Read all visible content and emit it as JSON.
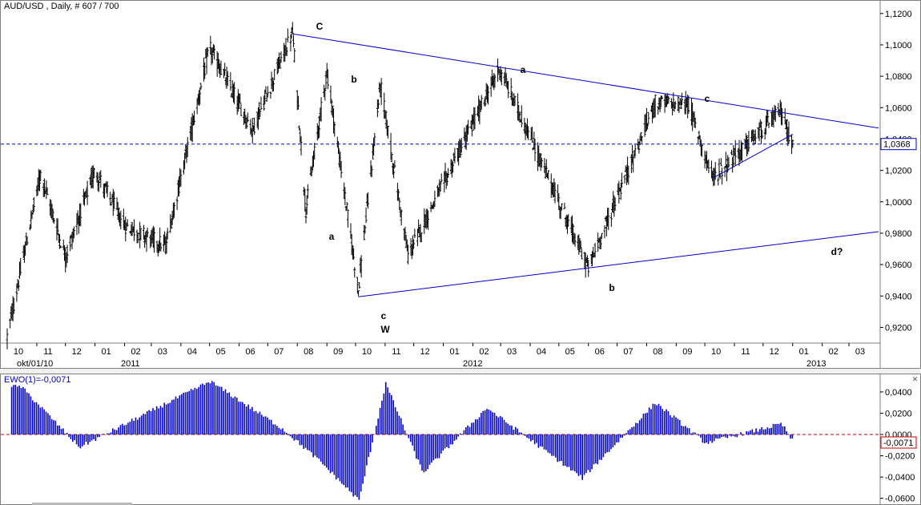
{
  "main": {
    "title": "AUD/USD , Daily, # 607 / 700",
    "last_price_label": "1,0368",
    "y_tick_labels": [
      "1,1200",
      "1,1000",
      "1,0800",
      "1,0600",
      "1,0400",
      "1,0200",
      "1,0000",
      "0,9800",
      "0,9600",
      "0,9400",
      "0,9200"
    ],
    "month_labels": [
      "10",
      "11",
      "12",
      "01",
      "02",
      "03",
      "04",
      "05",
      "06",
      "07",
      "08",
      "09",
      "10",
      "11",
      "12",
      "01",
      "02",
      "03",
      "04",
      "05",
      "06",
      "07",
      "08",
      "09",
      "10",
      "11",
      "12",
      "01",
      "02",
      "03"
    ],
    "year_labels": [
      "okt/01/10",
      "2011",
      "2012",
      "2013"
    ],
    "wave_labels": [
      "C",
      "b",
      "a",
      "c",
      "W",
      "a",
      "b",
      "c",
      "d?"
    ]
  },
  "oscillator": {
    "title": "EWO(1)=-0,0071",
    "last_value_label": "-0,0071",
    "y_tick_labels": [
      "0,0400",
      "0,0200",
      "0,0000",
      "-0,0200",
      "-0,0400",
      "-0,0600"
    ]
  },
  "colors": {
    "bars": "#000000",
    "trendlines": "#0000cc",
    "dashed_level": "#0000cc",
    "osc_bars": "#0000cc",
    "osc_zero": "#cc0000"
  },
  "chart_data": [
    {
      "type": "bar",
      "series_kind": "ohlc",
      "title": "AUD/USD , Daily, # 607 / 700",
      "ylim": [
        0.91,
        1.125
      ],
      "last_value": 1.0368,
      "x_range": [
        "2010-10-01",
        "2013-03"
      ],
      "key_points": [
        {
          "date": "2010-10-01",
          "price": 0.914
        },
        {
          "date": "2010-11-05",
          "price": 1.018
        },
        {
          "date": "2010-12-01",
          "price": 0.965
        },
        {
          "date": "2011-01-01",
          "price": 1.02
        },
        {
          "date": "2011-02-01",
          "price": 0.985
        },
        {
          "date": "2011-03-16",
          "price": 0.972
        },
        {
          "date": "2011-05-01",
          "price": 1.098
        },
        {
          "date": "2011-06-15",
          "price": 1.046
        },
        {
          "date": "2011-07-27",
          "price": 1.108,
          "label": "C"
        },
        {
          "date": "2011-08-10",
          "price": 0.995,
          "label": "a"
        },
        {
          "date": "2011-09-01",
          "price": 1.083,
          "label": "b"
        },
        {
          "date": "2011-10-04",
          "price": 0.944,
          "label": "c"
        },
        {
          "date": "2011-10-27",
          "price": 1.075
        },
        {
          "date": "2011-11-25",
          "price": 0.966
        },
        {
          "date": "2012-02-29",
          "price": 1.085,
          "label": "a"
        },
        {
          "date": "2012-06-01",
          "price": 0.958,
          "label": "b"
        },
        {
          "date": "2012-08-10",
          "price": 1.063
        },
        {
          "date": "2012-09-14",
          "price": 1.062,
          "label": "c"
        },
        {
          "date": "2012-10-09",
          "price": 1.015
        },
        {
          "date": "2012-12-20",
          "price": 1.058
        },
        {
          "date": "2013-01-01",
          "price": 1.0368
        }
      ],
      "trendlines": [
        {
          "from": {
            "date": "2011-07-27",
            "price": 1.107
          },
          "to": {
            "date": "2013-04-01",
            "price": 1.047
          }
        },
        {
          "from": {
            "date": "2011-10-04",
            "price": 0.9395
          },
          "to": {
            "date": "2013-04-01",
            "price": 0.981
          }
        },
        {
          "from": {
            "date": "2012-10-09",
            "price": 1.015
          },
          "to": {
            "date": "2013-01-01",
            "price": 1.043
          }
        }
      ],
      "horizontal_line": 1.0368
    },
    {
      "type": "bar",
      "title": "EWO(1)=-0,0071",
      "ylim": [
        -0.064,
        0.052
      ],
      "last_value": -0.0071,
      "key_points": [
        {
          "date": "2010-10-15",
          "value": 0.045
        },
        {
          "date": "2010-12-15",
          "value": -0.012
        },
        {
          "date": "2011-05-01",
          "value": 0.05
        },
        {
          "date": "2011-07-15",
          "value": 0.006
        },
        {
          "date": "2011-08-25",
          "value": -0.026
        },
        {
          "date": "2011-10-04",
          "value": -0.062
        },
        {
          "date": "2011-11-01",
          "value": 0.048
        },
        {
          "date": "2011-12-10",
          "value": -0.036
        },
        {
          "date": "2012-02-15",
          "value": 0.025
        },
        {
          "date": "2012-05-25",
          "value": -0.041
        },
        {
          "date": "2012-08-10",
          "value": 0.03
        },
        {
          "date": "2012-10-01",
          "value": -0.008
        },
        {
          "date": "2012-12-20",
          "value": 0.01
        },
        {
          "date": "2013-01-01",
          "value": -0.0071
        }
      ]
    }
  ]
}
